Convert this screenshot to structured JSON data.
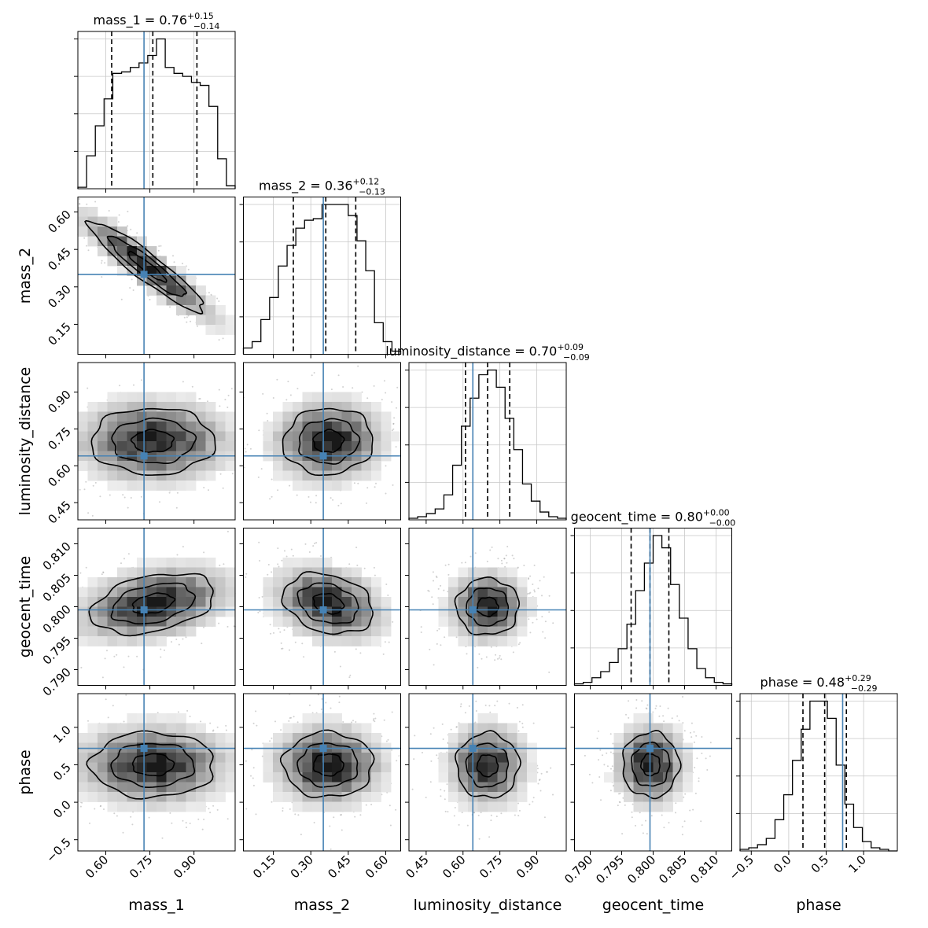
{
  "chart_data": {
    "type": "corner",
    "parameters": [
      {
        "key": "mass_1",
        "label": "mass_1",
        "median": 0.76,
        "plus": 0.15,
        "minus": 0.14,
        "truth": 0.73,
        "range": [
          0.505,
          1.04
        ],
        "ticks": [
          0.6,
          0.75,
          0.9
        ],
        "tick_labels": [
          "0.60",
          "0.75",
          "0.90"
        ],
        "quantiles": [
          0.62,
          0.76,
          0.91
        ],
        "hist": [
          0.01,
          0.22,
          0.42,
          0.6,
          0.77,
          0.78,
          0.81,
          0.84,
          0.89,
          1.0,
          0.81,
          0.77,
          0.75,
          0.71,
          0.69,
          0.55,
          0.2,
          0.02
        ]
      },
      {
        "key": "mass_2",
        "label": "mass_2",
        "median": 0.36,
        "plus": 0.12,
        "minus": 0.13,
        "truth": 0.35,
        "range": [
          0.03,
          0.66
        ],
        "ticks": [
          0.15,
          0.3,
          0.45,
          0.6
        ],
        "tick_labels": [
          "0.15",
          "0.30",
          "0.45",
          "0.60"
        ],
        "quantiles": [
          0.23,
          0.36,
          0.48
        ],
        "hist": [
          0.04,
          0.08,
          0.22,
          0.36,
          0.56,
          0.69,
          0.8,
          0.85,
          0.86,
          0.95,
          0.95,
          0.95,
          0.88,
          0.72,
          0.53,
          0.2,
          0.08,
          0.02
        ]
      },
      {
        "key": "luminosity_distance",
        "label": "luminosity_distance",
        "median": 0.7,
        "plus": 0.09,
        "minus": 0.09,
        "truth": 0.64,
        "range": [
          0.38,
          1.02
        ],
        "ticks": [
          0.45,
          0.6,
          0.75,
          0.9
        ],
        "tick_labels": [
          "0.45",
          "0.60",
          "0.75",
          "0.90"
        ],
        "quantiles": [
          0.61,
          0.7,
          0.79
        ],
        "hist": [
          0.01,
          0.02,
          0.04,
          0.07,
          0.16,
          0.35,
          0.6,
          0.78,
          0.93,
          0.96,
          0.85,
          0.65,
          0.45,
          0.23,
          0.12,
          0.05,
          0.02,
          0.01
        ]
      },
      {
        "key": "geocent_time",
        "label": "geocent_time",
        "median": 0.8,
        "plus": 0.0,
        "minus": 0.0,
        "truth": 0.7995,
        "range": [
          0.7875,
          0.8125
        ],
        "ticks": [
          0.79,
          0.795,
          0.8,
          0.805,
          0.81
        ],
        "tick_labels": [
          "0.790",
          "0.795",
          "0.800",
          "0.805",
          "0.810"
        ],
        "quantiles": [
          0.7965,
          0.7995,
          0.8025
        ],
        "hist": [
          0.01,
          0.02,
          0.05,
          0.09,
          0.15,
          0.24,
          0.4,
          0.62,
          0.8,
          0.98,
          0.9,
          0.66,
          0.44,
          0.24,
          0.11,
          0.05,
          0.02,
          0.01
        ]
      },
      {
        "key": "phase",
        "label": "phase",
        "median": 0.48,
        "plus": 0.29,
        "minus": 0.29,
        "truth": 0.72,
        "range": [
          -0.65,
          1.45
        ],
        "ticks": [
          -0.5,
          0.0,
          0.5,
          1.0
        ],
        "tick_labels": [
          "−0.5",
          "0.0",
          "0.5",
          "1.0"
        ],
        "quantiles": [
          0.19,
          0.48,
          0.77
        ],
        "hist": [
          0.01,
          0.02,
          0.04,
          0.08,
          0.2,
          0.36,
          0.58,
          0.78,
          0.96,
          0.96,
          0.85,
          0.55,
          0.3,
          0.15,
          0.06,
          0.02,
          0.01,
          0.0
        ]
      }
    ],
    "pairs": [
      {
        "row": 1,
        "col": 0,
        "mean": [
          0.74,
          0.38
        ],
        "sd": [
          0.13,
          0.12
        ],
        "rho": -0.93
      },
      {
        "row": 2,
        "col": 0,
        "mean": [
          0.76,
          0.7
        ],
        "sd": [
          0.14,
          0.09
        ],
        "rho": 0.0
      },
      {
        "row": 2,
        "col": 1,
        "mean": [
          0.37,
          0.7
        ],
        "sd": [
          0.12,
          0.09
        ],
        "rho": 0.05
      },
      {
        "row": 3,
        "col": 0,
        "mean": [
          0.76,
          0.8005
        ],
        "sd": [
          0.14,
          0.0032
        ],
        "rho": 0.35
      },
      {
        "row": 3,
        "col": 1,
        "mean": [
          0.37,
          0.8005
        ],
        "sd": [
          0.12,
          0.0032
        ],
        "rho": -0.25
      },
      {
        "row": 3,
        "col": 2,
        "mean": [
          0.7,
          0.8
        ],
        "sd": [
          0.085,
          0.003
        ],
        "rho": 0.0
      },
      {
        "row": 4,
        "col": 0,
        "mean": [
          0.76,
          0.5
        ],
        "sd": [
          0.14,
          0.29
        ],
        "rho": 0.0
      },
      {
        "row": 4,
        "col": 1,
        "mean": [
          0.37,
          0.5
        ],
        "sd": [
          0.12,
          0.29
        ],
        "rho": 0.0
      },
      {
        "row": 4,
        "col": 2,
        "mean": [
          0.7,
          0.49
        ],
        "sd": [
          0.085,
          0.29
        ],
        "rho": 0.0
      },
      {
        "row": 4,
        "col": 3,
        "mean": [
          0.7996,
          0.5
        ],
        "sd": [
          0.003,
          0.29
        ],
        "rho": 0.0
      }
    ],
    "contour_levels": [
      0.5,
      1.0,
      1.5
    ],
    "truth_color": "#4682b4",
    "line_color": "#000000",
    "grid": true
  }
}
